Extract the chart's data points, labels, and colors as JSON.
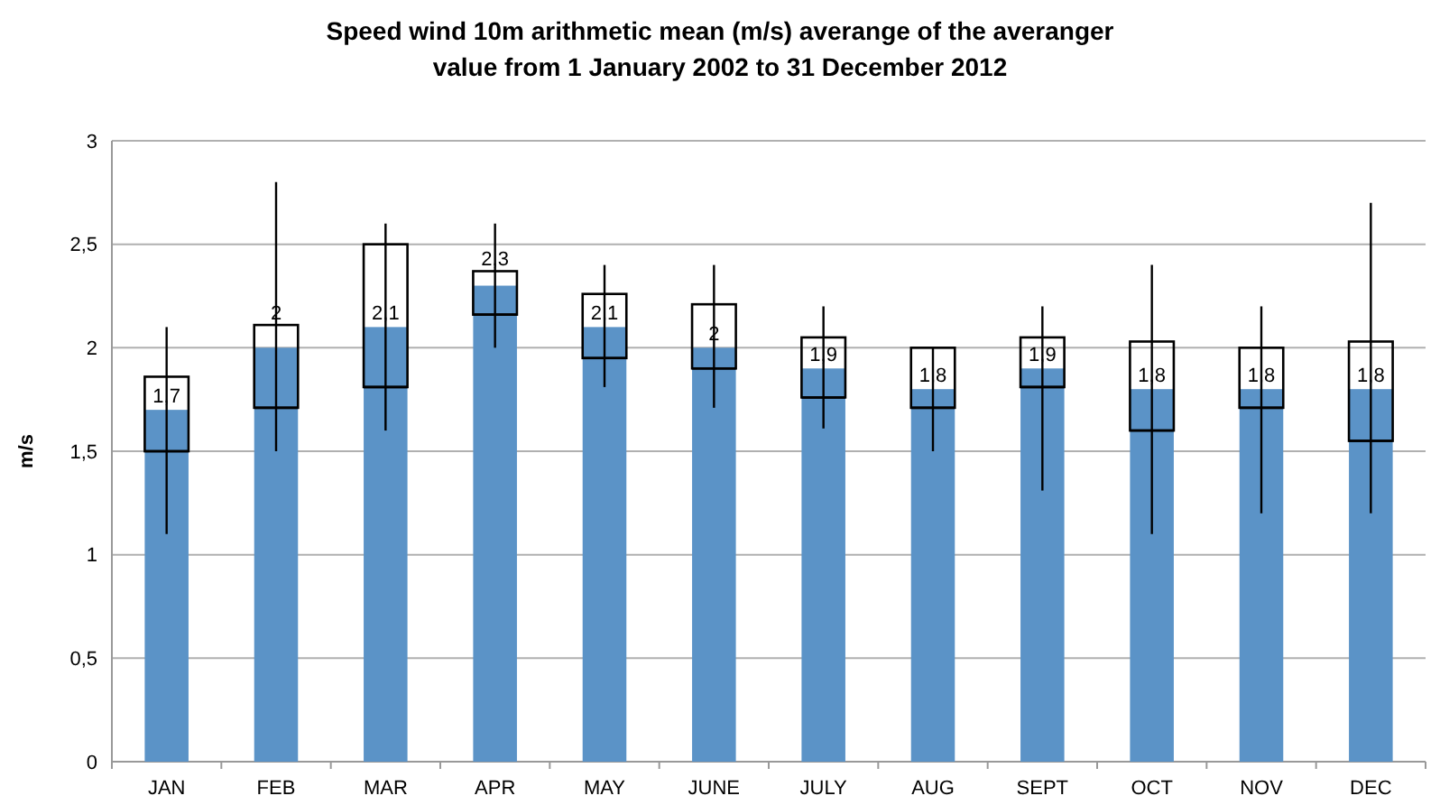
{
  "chart_data": {
    "type": "bar",
    "title": "Speed wind 10m arithmetic mean (m/s) averange of the averanger\nvalue from 1 January 2002 to 31 December 2012",
    "ylabel": "m/s",
    "categories": [
      "JAN",
      "FEB",
      "MAR",
      "APR",
      "MAY",
      "JUNE",
      "JULY",
      "AUG",
      "SEPT",
      "OCT",
      "NOV",
      "DEC"
    ],
    "ylim": [
      0,
      3
    ],
    "yticks": [
      0,
      {
        "value": 0.5,
        "label": "0,5"
      },
      1,
      {
        "value": 1.5,
        "label": "1,5"
      },
      2,
      {
        "value": 2.5,
        "label": "2,5"
      },
      3
    ],
    "grid": "y",
    "series": [
      {
        "color": "#5b93c7",
        "values": [
          1.7,
          2,
          2.1,
          2.3,
          2.1,
          2,
          1.9,
          1.8,
          1.9,
          1.8,
          1.8,
          1.8
        ],
        "value_labels": [
          "1,7",
          "2",
          "2,1",
          "2,3",
          "2,1",
          "2",
          "1,9",
          "1,8",
          "1,9",
          "1,8",
          "1,8",
          "1,8"
        ]
      },
      {
        "type": "box",
        "color": "#000000",
        "boxes": [
          {
            "low": 1.1,
            "q1": 1.5,
            "median": 1.5,
            "q3": 1.86,
            "high": 2.1
          },
          {
            "low": 1.5,
            "q1": 1.71,
            "median": 1.71,
            "q3": 2.11,
            "high": 2.8
          },
          {
            "low": 1.6,
            "q1": 1.81,
            "median": 1.81,
            "q3": 2.5,
            "high": 2.6
          },
          {
            "low": 2.0,
            "q1": 2.16,
            "median": 2.16,
            "q3": 2.37,
            "high": 2.6
          },
          {
            "low": 1.81,
            "q1": 1.95,
            "median": 1.95,
            "q3": 2.26,
            "high": 2.4
          },
          {
            "low": 1.71,
            "q1": 1.9,
            "median": 1.9,
            "q3": 2.21,
            "high": 2.4
          },
          {
            "low": 1.61,
            "q1": 1.76,
            "median": 1.76,
            "q3": 2.05,
            "high": 2.2
          },
          {
            "low": 1.5,
            "q1": 1.71,
            "median": 1.71,
            "q3": 2.0,
            "high": 2.0
          },
          {
            "low": 1.31,
            "q1": 1.81,
            "median": 1.81,
            "q3": 2.05,
            "high": 2.2
          },
          {
            "low": 1.1,
            "q1": 1.6,
            "median": 1.6,
            "q3": 2.03,
            "high": 2.4
          },
          {
            "low": 1.2,
            "q1": 1.71,
            "median": 1.71,
            "q3": 2.0,
            "high": 2.2
          },
          {
            "low": 1.2,
            "q1": 1.55,
            "median": 1.55,
            "q3": 2.03,
            "high": 2.7
          }
        ]
      }
    ]
  }
}
